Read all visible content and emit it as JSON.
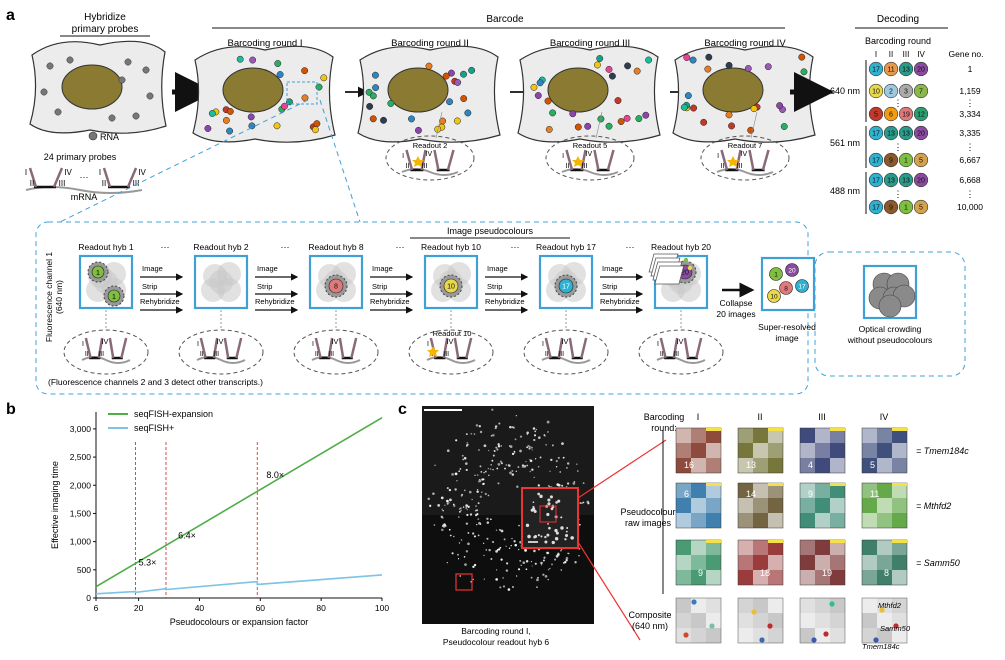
{
  "panel_a": {
    "letter": "a",
    "hybridize_line1": "Hybridize",
    "hybridize_line2": "primary probes",
    "rna_label": "RNA",
    "probes_label": "24 primary probes",
    "mrna_label": "mRNA",
    "barcode_title": "Barcode",
    "rounds": [
      "Barcoding round I",
      "Barcoding round II",
      "Barcoding round III",
      "Barcoding round IV"
    ],
    "readouts": [
      "Readout 2",
      "Readout 5",
      "Readout 7"
    ],
    "decoding": {
      "title": "Decoding",
      "subtitle": "Barcoding round",
      "round_headers": [
        "I",
        "II",
        "III",
        "IV"
      ],
      "gene_header": "Gene no.",
      "channels": [
        "640 nm",
        "561 nm",
        "488 nm"
      ],
      "rows": [
        {
          "codes": [
            "17",
            "11",
            "13",
            "20"
          ],
          "colors": [
            "#2fb2d2",
            "#e8984a",
            "#2a9a8a",
            "#8a4aa0"
          ],
          "gene": "1"
        },
        {
          "codes": [
            "10",
            "2",
            "3",
            "7"
          ],
          "colors": [
            "#e8d84a",
            "#9ecae1",
            "#aaaaaa",
            "#8ab94a"
          ],
          "gene": "1,159"
        },
        {
          "codes": [
            "5",
            "6",
            "19",
            "12"
          ],
          "colors": [
            "#c0392b",
            "#f39c12",
            "#e07a7a",
            "#2aa070"
          ],
          "gene": "3,334"
        },
        {
          "codes": [
            "17",
            "13",
            "13",
            "20"
          ],
          "colors": [
            "#2fb2d2",
            "#2a9a8a",
            "#2a9a8a",
            "#8a4aa0"
          ],
          "gene": "3,335"
        },
        {
          "codes": [
            "17",
            "9",
            "1",
            "5"
          ],
          "colors": [
            "#2fb2d2",
            "#8b5a2b",
            "#7fbf3f",
            "#d4a24c"
          ],
          "gene": "6,667"
        },
        {
          "codes": [
            "17",
            "13",
            "13",
            "20"
          ],
          "colors": [
            "#2fb2d2",
            "#2a9a8a",
            "#2a9a8a",
            "#8a4aa0"
          ],
          "gene": "6,668"
        },
        {
          "codes": [
            "17",
            "9",
            "1",
            "5"
          ],
          "colors": [
            "#2fb2d2",
            "#8b5a2b",
            "#7fbf3f",
            "#d4a24c"
          ],
          "gene": "10,000"
        }
      ],
      "ellipsis": "⋮"
    },
    "probe_numerals": {
      "one": "I",
      "two": "II",
      "three": "III",
      "four": "IV",
      "dots": "···"
    },
    "image_pseudocolours": "Image pseudocolours",
    "channel_label_line1": "Fluorescence channel 1",
    "channel_label_line2": "(640 nm)",
    "hybs": [
      "Readout hyb 1",
      "Readout hyb 2",
      "Readout hyb 8",
      "Readout hyb 10",
      "Readout hyb 17",
      "Readout hyb 20"
    ],
    "hyb_badges": [
      {
        "num": "1",
        "color": "#7fbf3f"
      },
      {
        "num": "",
        "color": ""
      },
      {
        "num": "8",
        "color": "#e07a7a"
      },
      {
        "num": "10",
        "color": "#e8d84a"
      },
      {
        "num": "17",
        "color": "#2fb2d2"
      },
      {
        "num": "20",
        "color": "#8a4aa0"
      }
    ],
    "step_labels": {
      "image": "Image",
      "strip": "Strip",
      "rehybridize": "Rehybridize"
    },
    "readout_10": "Readout 10",
    "collapse_line1": "Collapse",
    "collapse_line2": "20 images",
    "super_line1": "Super-resolved",
    "super_line2": "image",
    "super_badges": [
      {
        "num": "1",
        "color": "#7fbf3f"
      },
      {
        "num": "20",
        "color": "#8a4aa0"
      },
      {
        "num": "17",
        "color": "#2fb2d2"
      },
      {
        "num": "8",
        "color": "#e07a7a"
      },
      {
        "num": "10",
        "color": "#e8d84a"
      }
    ],
    "crowding_line1": "Optical crowding",
    "crowding_line2": "without pseudocolours",
    "fluor_note": "(Fluorescence channels 2 and 3 detect other transcripts.)"
  },
  "panel_b": {
    "letter": "b",
    "chart_data": {
      "type": "line",
      "xlabel": "Pseudocolours or expansion factor",
      "ylabel": "Effective imaging time",
      "xlim": [
        6,
        100
      ],
      "ylim": [
        0,
        3300
      ],
      "xticks": [
        6,
        20,
        40,
        60,
        80,
        100
      ],
      "yticks": [
        0,
        500,
        1000,
        1500,
        2000,
        2500,
        3000
      ],
      "ytick_labels": [
        "0",
        "500",
        "1,000",
        "1,500",
        "2,000",
        "2,500",
        "3,000"
      ],
      "legend_position": "top-left",
      "series": [
        {
          "name": "seqFISH-expansion",
          "color": "#4fae48",
          "x": [
            6,
            100
          ],
          "y": [
            200,
            3200
          ]
        },
        {
          "name": "seqFISH+",
          "color": "#7cc3e4",
          "x": [
            6,
            19,
            19,
            29,
            29,
            59,
            59,
            100
          ],
          "y": [
            75,
            115,
            100,
            165,
            150,
            290,
            240,
            410
          ]
        }
      ],
      "vlines": [
        19,
        29,
        59
      ],
      "annotations": [
        {
          "text": "5.3×",
          "x": 20,
          "y": 580
        },
        {
          "text": "6.4×",
          "x": 33,
          "y": 1060
        },
        {
          "text": "8.0×",
          "x": 62,
          "y": 2130
        }
      ]
    }
  },
  "panel_c": {
    "letter": "c",
    "caption_line1": "Barcoding round I,",
    "caption_line2": "Pseudocolour readout hyb 6",
    "barcoding_label1": "Barcoding",
    "barcoding_label2": "round:",
    "rounds": [
      "I",
      "II",
      "III",
      "IV"
    ],
    "raw_label1": "Pseudocolour",
    "raw_label2": "raw images",
    "composite_label1": "Composite",
    "composite_label2": "(640 nm)",
    "genes": [
      "= Tmem184c",
      "= Mthfd2",
      "= Samm50"
    ],
    "tile_numbers": [
      [
        "16",
        "13",
        "4",
        "5"
      ],
      [
        "6",
        "14",
        "9",
        "11"
      ],
      [
        "9",
        "18",
        "19",
        "8"
      ]
    ],
    "composite_genes": [
      "Mthfd2",
      "Samm50",
      "Tmem184c"
    ],
    "tile_palettes": [
      [
        "#7a2a1a",
        "#5f5f1a",
        "#1f2a66",
        "#1f3166"
      ],
      [
        "#1f6aa0",
        "#5a4a20",
        "#1f7a60",
        "#4a9a2a"
      ],
      [
        "#2a8a5a",
        "#8a1a1a",
        "#6a1a1a",
        "#1f6a50"
      ]
    ]
  }
}
